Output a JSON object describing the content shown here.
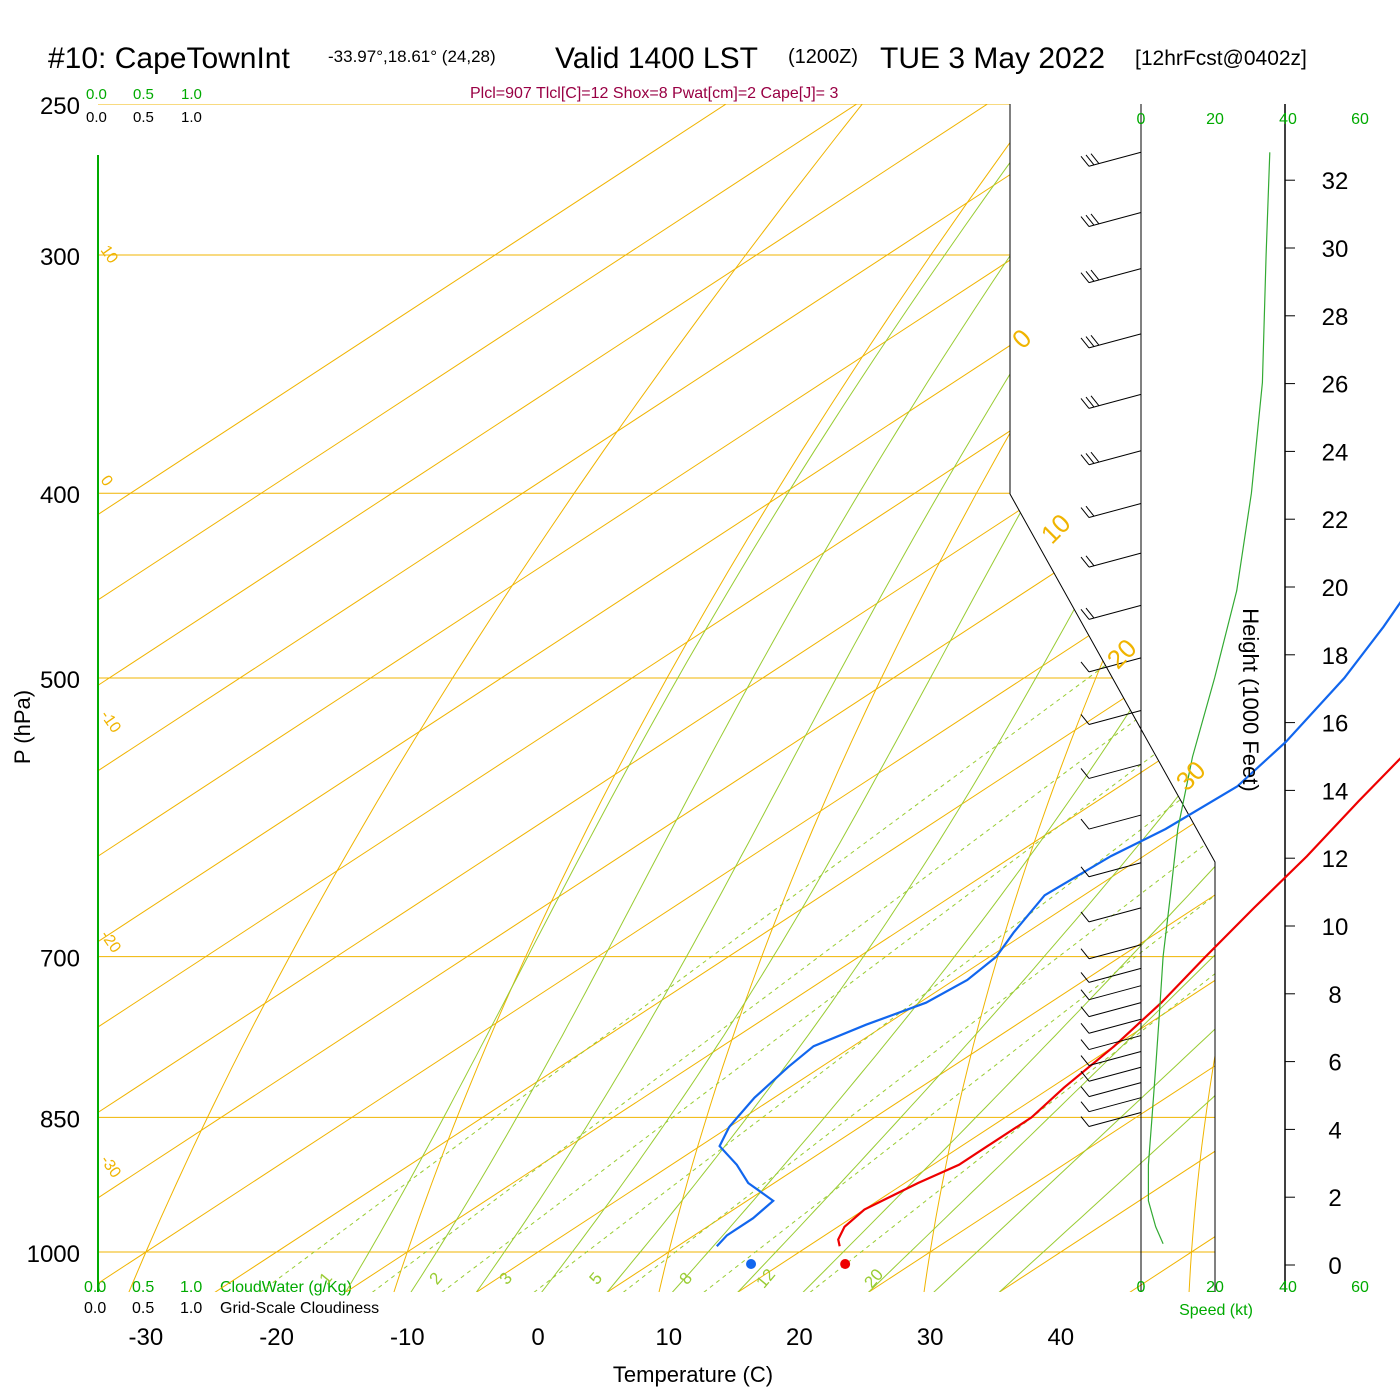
{
  "header": {
    "station": "#10: CapeTownInt",
    "coords": "-33.97°,18.61° (24,28)",
    "valid": "Valid 1400 LST",
    "zulu": "(1200Z)",
    "date": "TUE 3 May 2022",
    "forecast": "[12hrFcst@0402z]",
    "indices": "Plcl=907 Tlcl[C]=12 Shox=8 Pwat[cm]=2 Cape[J]= 3"
  },
  "colors": {
    "isotherm": "#f0b400",
    "adiabat": "#99cc33",
    "temperature": "#ee0000",
    "dewpoint": "#1166ee",
    "green_text": "#00aa00",
    "indices": "#990044",
    "speed": "#33aa33"
  },
  "scales": {
    "cloud_top_green": [
      "0.0",
      "0.5",
      "1.0"
    ],
    "cloud_top_black": [
      "0.0",
      "0.5",
      "1.0"
    ],
    "cloud_bottom_green": [
      "0.0",
      "0.5",
      "1.0"
    ],
    "cloud_bottom_black": [
      "0.0",
      "0.5",
      "1.0"
    ],
    "cloudwater_label": "CloudWater (g/Kg)",
    "cloudiness_label": "Grid-Scale Cloudiness",
    "speed_ticks": [
      "0",
      "20",
      "40",
      "60"
    ],
    "speed_label": "Speed (kt)"
  },
  "chart_data": {
    "type": "line",
    "title": "Skew-T log-P sounding",
    "xlabel": "Temperature (C)",
    "ylabel": "P (hPa)",
    "y2label": "Height (1000 Feet)",
    "x_ticks": [
      -30,
      -20,
      -10,
      0,
      10,
      20,
      30,
      40
    ],
    "p_ticks": [
      250,
      300,
      400,
      500,
      700,
      850,
      1000
    ],
    "height_ticks": [
      0,
      2,
      4,
      6,
      8,
      10,
      12,
      14,
      16,
      18,
      20,
      22,
      24,
      26,
      28,
      30,
      32
    ],
    "isotherm_labels": [
      {
        "t": 10,
        "text": "10"
      },
      {
        "t": 0,
        "text": "0"
      },
      {
        "t": -10,
        "text": "-10"
      },
      {
        "t": -20,
        "text": "-20"
      },
      {
        "t": -30,
        "text": "-30"
      }
    ],
    "isotherm_labels_right": [
      {
        "t": 0,
        "text": "0"
      },
      {
        "t": 10,
        "text": "10"
      },
      {
        "t": 20,
        "text": "20"
      },
      {
        "t": 30,
        "text": "30"
      }
    ],
    "mixing_ratio_labels": [
      "1",
      "2",
      "3",
      "5",
      "8",
      "12",
      "20"
    ],
    "series": [
      {
        "name": "Temperature",
        "p": [
          993,
          985,
          970,
          950,
          920,
          900,
          880,
          850,
          820,
          780,
          740,
          700,
          660,
          620,
          580,
          540,
          500,
          470,
          440,
          420,
          400,
          380,
          350,
          320,
          300,
          280,
          265
        ],
        "t": [
          22.4,
          21.5,
          20.5,
          20.0,
          21.0,
          22.0,
          22.0,
          22.0,
          21.0,
          20.0,
          18.5,
          16.5,
          14.5,
          12.5,
          10.0,
          7.5,
          5.0,
          3.0,
          1.0,
          -1.0,
          -3.0,
          -5.5,
          -9.5,
          -13.5,
          -16.5,
          -20.0,
          -23.0
        ]
      },
      {
        "name": "Dewpoint",
        "p": [
          993,
          980,
          960,
          940,
          920,
          900,
          880,
          860,
          850,
          830,
          800,
          780,
          760,
          740,
          720,
          700,
          680,
          650,
          620,
          600,
          570,
          540,
          500,
          470,
          440,
          400,
          375,
          350,
          320,
          300,
          280,
          265
        ],
        "t": [
          13.0,
          12.5,
          12.5,
          12.0,
          8.0,
          5.0,
          1.5,
          0.0,
          -0.5,
          -1.5,
          -2.5,
          -3.0,
          -1.5,
          0.5,
          1.0,
          0.5,
          -1.0,
          -3.0,
          -2.5,
          -1.5,
          -1.0,
          -2.5,
          -5.5,
          -8.5,
          -12.0,
          -20.5,
          -24.5,
          -27.0,
          -30.5,
          -33.5,
          -35.0,
          -37.0
        ]
      }
    ],
    "surface_points": [
      {
        "name": "surface-temperature",
        "p": 1000,
        "t": 23.5
      },
      {
        "name": "surface-dewpoint",
        "p": 1000,
        "t": 16.3
      }
    ],
    "wind_barbs_p": [
      265,
      285,
      305,
      330,
      355,
      380,
      405,
      430,
      458,
      488,
      520,
      555,
      590,
      625,
      660,
      690,
      710,
      725,
      740,
      755,
      770,
      785,
      800,
      815,
      830,
      845
    ],
    "wind_barbs_kt": [
      25,
      25,
      25,
      25,
      25,
      25,
      20,
      15,
      15,
      10,
      10,
      10,
      10,
      10,
      10,
      10,
      10,
      10,
      10,
      10,
      10,
      10,
      10,
      10,
      10,
      10
    ],
    "wind_speed_profile": {
      "p": [
        265,
        300,
        350,
        400,
        450,
        500,
        550,
        600,
        650,
        700,
        750,
        800,
        850,
        900,
        940,
        970,
        990
      ],
      "kt": [
        35,
        34,
        33,
        30,
        26,
        20,
        14,
        10,
        8,
        6,
        5,
        4,
        3,
        2,
        2,
        4,
        6
      ]
    }
  }
}
